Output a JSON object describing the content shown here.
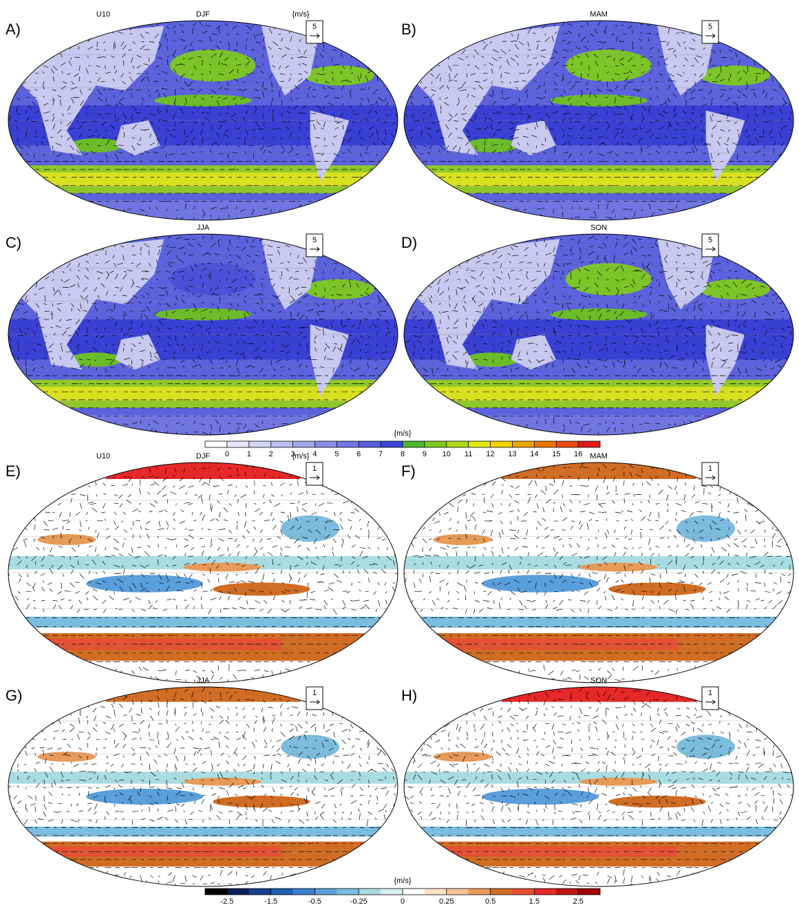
{
  "panels": [
    {
      "label": "A)",
      "left_title": "U10",
      "center_title": "DJF",
      "right_title": "{m/s}",
      "ref_vector": "5"
    },
    {
      "label": "B)",
      "center_title": "MAM",
      "ref_vector": "5"
    },
    {
      "label": "C)",
      "center_title": "JJA",
      "ref_vector": "5"
    },
    {
      "label": "D)",
      "center_title": "SON",
      "ref_vector": "5"
    },
    {
      "label": "E)",
      "left_title": "U10",
      "center_title": "DJF",
      "right_title": "{m/s}",
      "ref_vector": "1"
    },
    {
      "label": "F)",
      "center_title": "MAM",
      "ref_vector": "1"
    },
    {
      "label": "G)",
      "center_title": "JJA",
      "ref_vector": "1"
    },
    {
      "label": "H)",
      "center_title": "SON",
      "ref_vector": "1"
    }
  ],
  "colorbars": [
    {
      "unit": "{m/s}",
      "ticks": [
        0,
        1,
        2,
        3,
        4,
        5,
        6,
        7,
        8,
        9,
        10,
        11,
        12,
        13,
        14,
        15,
        16
      ],
      "colors": [
        "#ffffff",
        "#e8e8f8",
        "#d4d4f2",
        "#bcbcee",
        "#a4a6ea",
        "#8c8ee6",
        "#7276e2",
        "#575ddc",
        "#3c44d8",
        "#4cb830",
        "#80c820",
        "#b0d818",
        "#e0e810",
        "#f2d200",
        "#f2a400",
        "#f07400",
        "#ee4a10",
        "#e01a1a"
      ]
    },
    {
      "unit": "{m/s}",
      "ticks": [
        -2.5,
        -1.5,
        -0.5,
        -0.25,
        0,
        0.25,
        0.5,
        1.5,
        2.5
      ],
      "colors": [
        "#000000",
        "#0a1f5c",
        "#143f8c",
        "#1f5fb0",
        "#3a80cc",
        "#5a9edc",
        "#7cbcde",
        "#a8dce0",
        "#d8f0f0",
        "#ffffff",
        "#fde2c4",
        "#f6c496",
        "#e89a58",
        "#d06c24",
        "#e65034",
        "#e62828",
        "#c01212",
        "#a00000"
      ]
    }
  ]
}
